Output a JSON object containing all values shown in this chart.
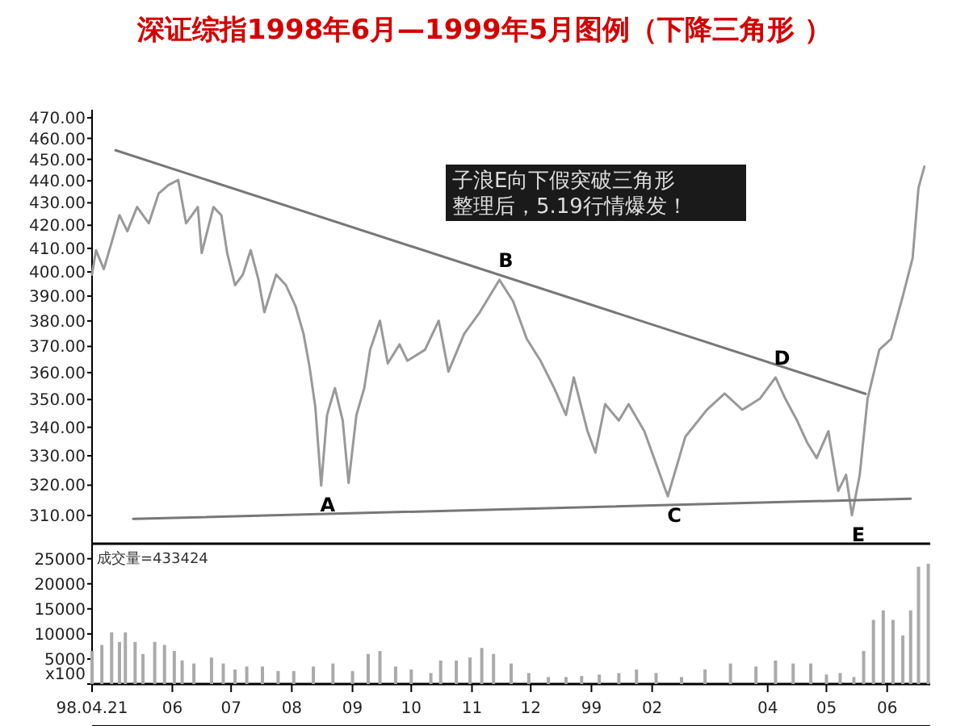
{
  "chart_data": [
    {
      "type": "line",
      "title": "深证综指1998年6月—1999年5月图例（下降三角形 ）",
      "log": true,
      "ylim": [
        301,
        474
      ],
      "xlim": [
        "1998-04-21",
        "1999-06-23"
      ],
      "yticks": [
        {
          "value": 310,
          "label": "310.00"
        },
        {
          "value": 320,
          "label": "320.00"
        },
        {
          "value": 330,
          "label": "330.00"
        },
        {
          "value": 340,
          "label": "340.00"
        },
        {
          "value": 350,
          "label": "350.00"
        },
        {
          "value": 360,
          "label": "360.00"
        },
        {
          "value": 370,
          "label": "370.00"
        },
        {
          "value": 380,
          "label": "380.00"
        },
        {
          "value": 390,
          "label": "390.00"
        },
        {
          "value": 400,
          "label": "400.00"
        },
        {
          "value": 410,
          "label": "410.00"
        },
        {
          "value": 420,
          "label": "420.00"
        },
        {
          "value": 430,
          "label": "430.00"
        },
        {
          "value": 440,
          "label": "440.00"
        },
        {
          "value": 450,
          "label": "450.00"
        },
        {
          "value": 460,
          "label": "460.00"
        },
        {
          "value": 470,
          "label": "470.00"
        }
      ],
      "tick_labels": "y",
      "grid": false,
      "series": [
        {
          "color": "#999999",
          "x": [
            "1998-04-21",
            "1998-04-23",
            "1998-04-27",
            "1998-05-01",
            "1998-05-05",
            "1998-05-09",
            "1998-05-14",
            "1998-05-20",
            "1998-05-25",
            "1998-05-30",
            "1998-06-04",
            "1998-06-08",
            "1998-06-14",
            "1998-06-16",
            "1998-06-22",
            "1998-06-26",
            "1998-06-29",
            "1998-07-03",
            "1998-07-07",
            "1998-07-11",
            "1998-07-15",
            "1998-07-18",
            "1998-07-24",
            "1998-07-29",
            "1998-08-03",
            "1998-08-07",
            "1998-08-10",
            "1998-08-13",
            "1998-08-16",
            "1998-08-19",
            "1998-08-23",
            "1998-08-27",
            "1998-08-30",
            "1998-09-03",
            "1998-09-07",
            "1998-09-10",
            "1998-09-15",
            "1998-09-19",
            "1998-09-25",
            "1998-09-29",
            "1998-10-08",
            "1998-10-15",
            "1998-10-20",
            "1998-10-28",
            "1998-11-05",
            "1998-11-15",
            "1998-11-22",
            "1998-11-29",
            "1998-12-06",
            "1998-12-13",
            "1998-12-19",
            "1998-12-23",
            "1998-12-30",
            "1999-01-03",
            "1999-01-08",
            "1999-01-15",
            "1999-01-20",
            "1999-01-28",
            "1999-02-09",
            "1999-02-18",
            "1999-03-01",
            "1999-03-10",
            "1999-03-19",
            "1999-03-28",
            "1999-04-05",
            "1999-04-10",
            "1999-04-16",
            "1999-04-21",
            "1999-04-26",
            "1999-05-02",
            "1999-05-07",
            "1999-05-11",
            "1999-05-14",
            "1999-05-18",
            "1999-05-22",
            "1999-05-28",
            "1999-06-03",
            "1999-06-09",
            "1999-06-14",
            "1999-06-17",
            "1999-06-20"
          ],
          "values": [
            398.9,
            409.2,
            401.2,
            412.6,
            424.5,
            417.4,
            428.1,
            420.9,
            434.2,
            438.1,
            440.4,
            420.9,
            428.1,
            408.0,
            428.1,
            424.5,
            408.0,
            394.5,
            398.9,
            409.2,
            396.7,
            383.5,
            398.9,
            394.5,
            385.7,
            374.9,
            362.4,
            347.3,
            319.9,
            344.4,
            354.2,
            342.4,
            320.8,
            344.4,
            354.2,
            368.7,
            380.1,
            363.5,
            370.8,
            364.5,
            368.7,
            380.1,
            360.4,
            374.9,
            383.5,
            396.7,
            387.9,
            372.9,
            364.5,
            354.2,
            344.4,
            358.2,
            338.6,
            331.1,
            348.3,
            342.4,
            348.3,
            338.6,
            316.3,
            336.7,
            346.3,
            352.2,
            346.3,
            350.3,
            358.2,
            350.3,
            342.4,
            334.8,
            329.2,
            338.6,
            318.1,
            323.5,
            310.1,
            323.5,
            350.3,
            368.7,
            372.9,
            390.0,
            405.9,
            436.8,
            446.6
          ]
        },
        {
          "type": "line",
          "color": "#777777",
          "x": [
            "1998-05-03",
            "1999-05-21"
          ],
          "values": [
            454.3,
            352.1
          ]
        },
        {
          "type": "line",
          "color": "#777777",
          "x": [
            "1998-05-12",
            "1999-06-13"
          ],
          "values": [
            308.9,
            315.5
          ]
        }
      ],
      "annotations": [
        {
          "text": "A",
          "x": "1998-08-16",
          "y": 319.9
        },
        {
          "text": "B",
          "x": "1998-11-15",
          "y": 396.7
        },
        {
          "text": "C",
          "x": "1999-02-09",
          "y": 316.3
        },
        {
          "text": "D",
          "x": "1999-04-05",
          "y": 358.2
        },
        {
          "text": "E",
          "x": "1999-05-14",
          "y": 310.1
        },
        "子浪E向下假突破三角形",
        "整理后，5.19行情爆发！"
      ]
    },
    {
      "type": "bar",
      "color": "#aaaaaa",
      "xlim": [
        "1998-04-21",
        "1999-06-23"
      ],
      "ylim": [
        0,
        28000
      ],
      "yticks": [
        {
          "value": 0,
          "label": "x100"
        },
        5000,
        10000,
        15000,
        20000,
        25000
      ],
      "xticks": [
        {
          "value": "1998-04-21",
          "label": "98.04.21"
        },
        {
          "value": "1998-06",
          "label": "06"
        },
        {
          "value": "1998-07",
          "label": "07"
        },
        {
          "value": "1998-08",
          "label": "08"
        },
        {
          "value": "1998-09",
          "label": "09"
        },
        {
          "value": "1998-10",
          "label": "10"
        },
        {
          "value": "1998-11",
          "label": "11"
        },
        {
          "value": "1998-12",
          "label": "12"
        },
        {
          "value": "1999-01",
          "label": "99"
        },
        {
          "value": "1999-02",
          "label": "02"
        },
        {
          "value": "1999-04",
          "label": "04"
        },
        {
          "value": "1999-05",
          "label": "05"
        },
        {
          "value": "1999-06",
          "label": "06"
        }
      ],
      "grid": false,
      "x": [
        "1998-04-21",
        "1998-04-26",
        "1998-05-01",
        "1998-05-05",
        "1998-05-08",
        "1998-05-13",
        "1998-05-17",
        "1998-05-23",
        "1998-05-28",
        "1998-06-02",
        "1998-06-06",
        "1998-06-12",
        "1998-06-21",
        "1998-06-27",
        "1998-07-03",
        "1998-07-09",
        "1998-07-17",
        "1998-07-25",
        "1998-08-02",
        "1998-08-12",
        "1998-08-22",
        "1998-09-01",
        "1998-09-09",
        "1998-09-15",
        "1998-09-23",
        "1998-10-01",
        "1998-10-11",
        "1998-10-16",
        "1998-10-24",
        "1998-10-31",
        "1998-11-06",
        "1998-11-12",
        "1998-11-21",
        "1998-11-30",
        "1998-12-10",
        "1998-12-19",
        "1998-12-27",
        "1999-01-05",
        "1999-01-15",
        "1999-01-24",
        "1999-02-03",
        "1999-02-16",
        "1999-02-28",
        "1999-03-13",
        "1999-03-26",
        "1999-04-05",
        "1999-04-14",
        "1999-04-23",
        "1999-05-01",
        "1999-05-08",
        "1999-05-15",
        "1999-05-20",
        "1999-05-25",
        "1999-05-30",
        "1999-06-04",
        "1999-06-09",
        "1999-06-13",
        "1999-06-17",
        "1999-06-22"
      ],
      "values": [
        6600,
        7800,
        10300,
        8400,
        10300,
        8400,
        6000,
        8400,
        7800,
        6600,
        4700,
        4100,
        5300,
        4100,
        2900,
        3500,
        3500,
        2600,
        2600,
        3500,
        4100,
        2600,
        6000,
        6600,
        3500,
        2900,
        2200,
        4700,
        4700,
        5300,
        7200,
        6000,
        4100,
        2200,
        1400,
        1400,
        1600,
        1900,
        2200,
        2900,
        2200,
        1400,
        2900,
        4100,
        3500,
        4700,
        4100,
        4100,
        1900,
        2200,
        1400,
        6600,
        12800,
        14700,
        12800,
        9700,
        14700,
        23400,
        24000
      ],
      "annotations": [
        "成交量=433424"
      ]
    }
  ]
}
